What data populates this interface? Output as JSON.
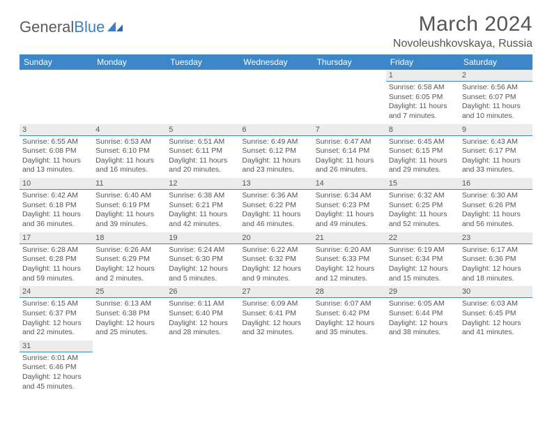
{
  "logo": {
    "text1": "General",
    "text2": "Blue"
  },
  "title": "March 2024",
  "location": "Novoleushkovskaya, Russia",
  "header_bg": "#3b87c8",
  "header_fg": "#ffffff",
  "daynum_bg": "#ececec",
  "daynum_border": "#3b87c8",
  "text_color": "#555555",
  "day_headers": [
    "Sunday",
    "Monday",
    "Tuesday",
    "Wednesday",
    "Thursday",
    "Friday",
    "Saturday"
  ],
  "weeks": [
    [
      null,
      null,
      null,
      null,
      null,
      {
        "n": "1",
        "sunrise": "Sunrise: 6:58 AM",
        "sunset": "Sunset: 6:05 PM",
        "daylight": "Daylight: 11 hours and 7 minutes."
      },
      {
        "n": "2",
        "sunrise": "Sunrise: 6:56 AM",
        "sunset": "Sunset: 6:07 PM",
        "daylight": "Daylight: 11 hours and 10 minutes."
      }
    ],
    [
      {
        "n": "3",
        "sunrise": "Sunrise: 6:55 AM",
        "sunset": "Sunset: 6:08 PM",
        "daylight": "Daylight: 11 hours and 13 minutes."
      },
      {
        "n": "4",
        "sunrise": "Sunrise: 6:53 AM",
        "sunset": "Sunset: 6:10 PM",
        "daylight": "Daylight: 11 hours and 16 minutes."
      },
      {
        "n": "5",
        "sunrise": "Sunrise: 6:51 AM",
        "sunset": "Sunset: 6:11 PM",
        "daylight": "Daylight: 11 hours and 20 minutes."
      },
      {
        "n": "6",
        "sunrise": "Sunrise: 6:49 AM",
        "sunset": "Sunset: 6:12 PM",
        "daylight": "Daylight: 11 hours and 23 minutes."
      },
      {
        "n": "7",
        "sunrise": "Sunrise: 6:47 AM",
        "sunset": "Sunset: 6:14 PM",
        "daylight": "Daylight: 11 hours and 26 minutes."
      },
      {
        "n": "8",
        "sunrise": "Sunrise: 6:45 AM",
        "sunset": "Sunset: 6:15 PM",
        "daylight": "Daylight: 11 hours and 29 minutes."
      },
      {
        "n": "9",
        "sunrise": "Sunrise: 6:43 AM",
        "sunset": "Sunset: 6:17 PM",
        "daylight": "Daylight: 11 hours and 33 minutes."
      }
    ],
    [
      {
        "n": "10",
        "sunrise": "Sunrise: 6:42 AM",
        "sunset": "Sunset: 6:18 PM",
        "daylight": "Daylight: 11 hours and 36 minutes."
      },
      {
        "n": "11",
        "sunrise": "Sunrise: 6:40 AM",
        "sunset": "Sunset: 6:19 PM",
        "daylight": "Daylight: 11 hours and 39 minutes."
      },
      {
        "n": "12",
        "sunrise": "Sunrise: 6:38 AM",
        "sunset": "Sunset: 6:21 PM",
        "daylight": "Daylight: 11 hours and 42 minutes."
      },
      {
        "n": "13",
        "sunrise": "Sunrise: 6:36 AM",
        "sunset": "Sunset: 6:22 PM",
        "daylight": "Daylight: 11 hours and 46 minutes."
      },
      {
        "n": "14",
        "sunrise": "Sunrise: 6:34 AM",
        "sunset": "Sunset: 6:23 PM",
        "daylight": "Daylight: 11 hours and 49 minutes."
      },
      {
        "n": "15",
        "sunrise": "Sunrise: 6:32 AM",
        "sunset": "Sunset: 6:25 PM",
        "daylight": "Daylight: 11 hours and 52 minutes."
      },
      {
        "n": "16",
        "sunrise": "Sunrise: 6:30 AM",
        "sunset": "Sunset: 6:26 PM",
        "daylight": "Daylight: 11 hours and 56 minutes."
      }
    ],
    [
      {
        "n": "17",
        "sunrise": "Sunrise: 6:28 AM",
        "sunset": "Sunset: 6:28 PM",
        "daylight": "Daylight: 11 hours and 59 minutes."
      },
      {
        "n": "18",
        "sunrise": "Sunrise: 6:26 AM",
        "sunset": "Sunset: 6:29 PM",
        "daylight": "Daylight: 12 hours and 2 minutes."
      },
      {
        "n": "19",
        "sunrise": "Sunrise: 6:24 AM",
        "sunset": "Sunset: 6:30 PM",
        "daylight": "Daylight: 12 hours and 5 minutes."
      },
      {
        "n": "20",
        "sunrise": "Sunrise: 6:22 AM",
        "sunset": "Sunset: 6:32 PM",
        "daylight": "Daylight: 12 hours and 9 minutes."
      },
      {
        "n": "21",
        "sunrise": "Sunrise: 6:20 AM",
        "sunset": "Sunset: 6:33 PM",
        "daylight": "Daylight: 12 hours and 12 minutes."
      },
      {
        "n": "22",
        "sunrise": "Sunrise: 6:19 AM",
        "sunset": "Sunset: 6:34 PM",
        "daylight": "Daylight: 12 hours and 15 minutes."
      },
      {
        "n": "23",
        "sunrise": "Sunrise: 6:17 AM",
        "sunset": "Sunset: 6:36 PM",
        "daylight": "Daylight: 12 hours and 18 minutes."
      }
    ],
    [
      {
        "n": "24",
        "sunrise": "Sunrise: 6:15 AM",
        "sunset": "Sunset: 6:37 PM",
        "daylight": "Daylight: 12 hours and 22 minutes."
      },
      {
        "n": "25",
        "sunrise": "Sunrise: 6:13 AM",
        "sunset": "Sunset: 6:38 PM",
        "daylight": "Daylight: 12 hours and 25 minutes."
      },
      {
        "n": "26",
        "sunrise": "Sunrise: 6:11 AM",
        "sunset": "Sunset: 6:40 PM",
        "daylight": "Daylight: 12 hours and 28 minutes."
      },
      {
        "n": "27",
        "sunrise": "Sunrise: 6:09 AM",
        "sunset": "Sunset: 6:41 PM",
        "daylight": "Daylight: 12 hours and 32 minutes."
      },
      {
        "n": "28",
        "sunrise": "Sunrise: 6:07 AM",
        "sunset": "Sunset: 6:42 PM",
        "daylight": "Daylight: 12 hours and 35 minutes."
      },
      {
        "n": "29",
        "sunrise": "Sunrise: 6:05 AM",
        "sunset": "Sunset: 6:44 PM",
        "daylight": "Daylight: 12 hours and 38 minutes."
      },
      {
        "n": "30",
        "sunrise": "Sunrise: 6:03 AM",
        "sunset": "Sunset: 6:45 PM",
        "daylight": "Daylight: 12 hours and 41 minutes."
      }
    ],
    [
      {
        "n": "31",
        "sunrise": "Sunrise: 6:01 AM",
        "sunset": "Sunset: 6:46 PM",
        "daylight": "Daylight: 12 hours and 45 minutes."
      },
      null,
      null,
      null,
      null,
      null,
      null
    ]
  ]
}
